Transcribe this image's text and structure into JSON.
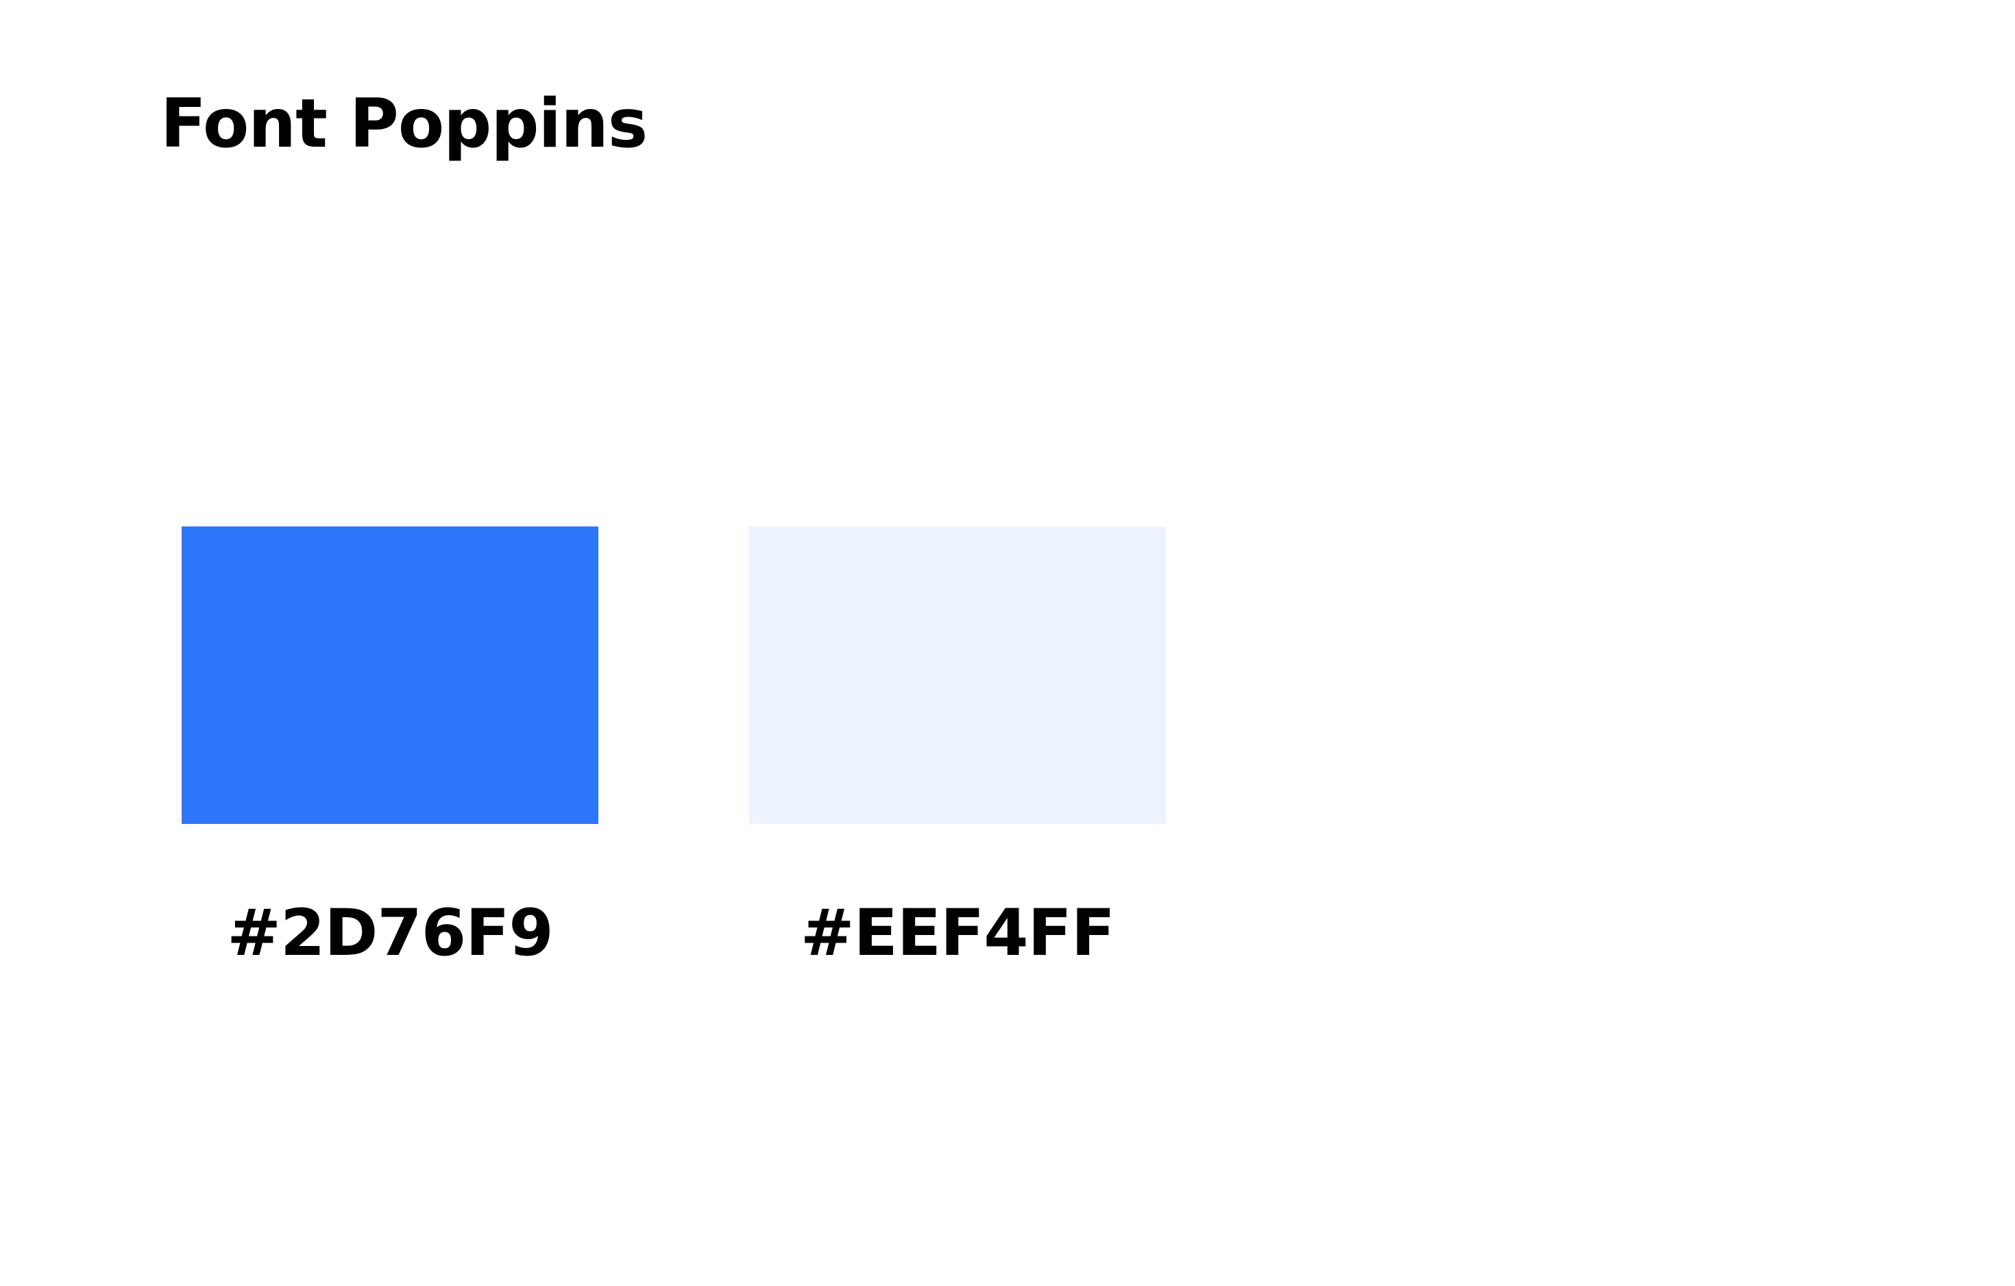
{
  "header": {
    "title": "Font Poppins"
  },
  "palette": [
    {
      "color": "#2D76F9",
      "label": "#2D76F9"
    },
    {
      "color": "#EEF4FF",
      "label": "#EEF4FF"
    }
  ]
}
